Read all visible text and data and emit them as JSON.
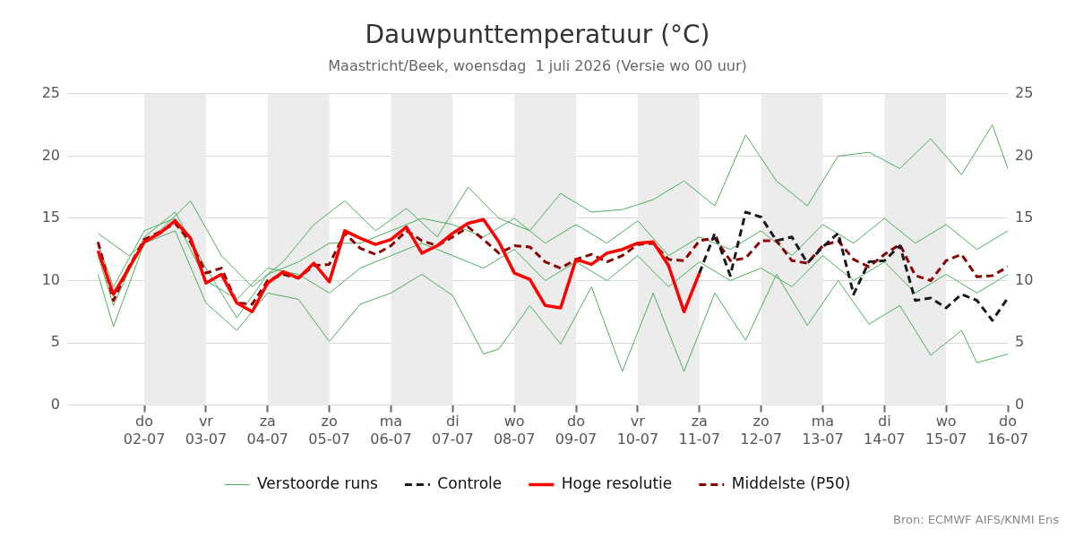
{
  "chart_data": {
    "type": "line",
    "title": "Dauwpunttemperatuur (°C)",
    "subtitle": "Maastricht/Beek, woensdag  1 juli 2026 (Versie wo 00 uur)",
    "annotations": [
      "Bron: ECMWF AIFS/KNMI Ens"
    ],
    "xlim": [
      "2026-06-30T18:00",
      "2026-07-16T00:00"
    ],
    "xticks": [
      {
        "value": "2026-07-02",
        "label": "do\n02-07"
      },
      {
        "value": "2026-07-03",
        "label": "vr\n03-07"
      },
      {
        "value": "2026-07-04",
        "label": "za\n04-07"
      },
      {
        "value": "2026-07-05",
        "label": "zo\n05-07"
      },
      {
        "value": "2026-07-06",
        "label": "ma\n06-07"
      },
      {
        "value": "2026-07-07",
        "label": "di\n07-07"
      },
      {
        "value": "2026-07-08",
        "label": "wo\n08-07"
      },
      {
        "value": "2026-07-09",
        "label": "do\n09-07"
      },
      {
        "value": "2026-07-10",
        "label": "vr\n10-07"
      },
      {
        "value": "2026-07-11",
        "label": "za\n11-07"
      },
      {
        "value": "2026-07-12",
        "label": "zo\n12-07"
      },
      {
        "value": "2026-07-13",
        "label": "ma\n13-07"
      },
      {
        "value": "2026-07-14",
        "label": "di\n14-07"
      },
      {
        "value": "2026-07-15",
        "label": "wo\n15-07"
      },
      {
        "value": "2026-07-16",
        "label": "do\n16-07"
      }
    ],
    "ylim": [
      0,
      25
    ],
    "yticks": [
      0,
      5,
      10,
      15,
      20,
      25
    ],
    "y2lim": [
      0,
      25
    ],
    "y2ticks": [
      0,
      5,
      10,
      15,
      20,
      25
    ],
    "grid": "y",
    "legend": "bottom",
    "marker": "none",
    "bands": [
      {
        "axis": "x",
        "from": "2026-07-02",
        "to": "2026-07-03",
        "color": "#ececec"
      },
      {
        "axis": "x",
        "from": "2026-07-04",
        "to": "2026-07-05",
        "color": "#ececec"
      },
      {
        "axis": "x",
        "from": "2026-07-06",
        "to": "2026-07-07",
        "color": "#ececec"
      },
      {
        "axis": "x",
        "from": "2026-07-08",
        "to": "2026-07-09",
        "color": "#ececec"
      },
      {
        "axis": "x",
        "from": "2026-07-10",
        "to": "2026-07-11",
        "color": "#ececec"
      },
      {
        "axis": "x",
        "from": "2026-07-12",
        "to": "2026-07-13",
        "color": "#ececec"
      },
      {
        "axis": "x",
        "from": "2026-07-14",
        "to": "2026-07-15",
        "color": "#ececec"
      }
    ],
    "series": [
      {
        "name": "Verstoorde runs",
        "color": "#4caf5a",
        "x": [
          "2026-07-01T06:00",
          "2026-07-01T18:00",
          "2026-07-02T06:00",
          "2026-07-02T18:00",
          "2026-07-03T06:00",
          "2026-07-03T18:00",
          "2026-07-04T06:00",
          "2026-07-04T18:00",
          "2026-07-05T06:00",
          "2026-07-05T18:00",
          "2026-07-06T06:00",
          "2026-07-06T18:00",
          "2026-07-07T06:00",
          "2026-07-07T18:00",
          "2026-07-08T06:00",
          "2026-07-08T18:00",
          "2026-07-09T06:00",
          "2026-07-09T18:00",
          "2026-07-10T06:00",
          "2026-07-10T18:00",
          "2026-07-11T06:00",
          "2026-07-11T18:00",
          "2026-07-12T06:00",
          "2026-07-12T18:00",
          "2026-07-13T06:00",
          "2026-07-13T18:00",
          "2026-07-14T06:00",
          "2026-07-14T18:00",
          "2026-07-15T06:00",
          "2026-07-15T18:00",
          "2026-07-16T00:00"
        ],
        "values": [
          13.8,
          12,
          14,
          16.4,
          12,
          9.5,
          11.5,
          14.5,
          16.4,
          14,
          15.8,
          13.5,
          17.5,
          15,
          14,
          17,
          15.5,
          15.7,
          16.5,
          18,
          16,
          21.7,
          18,
          16,
          20,
          20.3,
          19,
          21.4,
          18.5,
          22.5,
          19
        ]
      },
      {
        "color": "#4caf5a",
        "x": [
          "2026-07-01T06:00",
          "2026-07-01T12:00",
          "2026-07-02T00:00",
          "2026-07-02T12:00",
          "2026-07-03T00:00",
          "2026-07-03T12:00",
          "2026-07-04T00:00",
          "2026-07-04T12:00",
          "2026-07-05T00:00",
          "2026-07-05T12:00",
          "2026-07-06T00:00",
          "2026-07-06T12:00",
          "2026-07-07T00:00",
          "2026-07-07T12:00",
          "2026-07-07T18:00",
          "2026-07-08T06:00",
          "2026-07-08T18:00",
          "2026-07-09T06:00",
          "2026-07-09T18:00",
          "2026-07-10T06:00",
          "2026-07-10T18:00",
          "2026-07-11T06:00",
          "2026-07-11T18:00",
          "2026-07-12T06:00",
          "2026-07-12T18:00",
          "2026-07-13T06:00",
          "2026-07-13T18:00",
          "2026-07-14T06:00",
          "2026-07-14T18:00",
          "2026-07-15T06:00",
          "2026-07-15T12:00",
          "2026-07-16T00:00"
        ],
        "values": [
          10.5,
          6.3,
          13,
          14,
          8.2,
          6,
          9,
          8.5,
          5.1,
          8.1,
          9,
          10.5,
          8.8,
          4.1,
          4.5,
          8,
          4.9,
          9.5,
          2.7,
          9,
          2.7,
          9,
          5.2,
          10.5,
          6.4,
          10,
          6.5,
          8,
          4,
          6,
          3.4,
          4.1
        ]
      },
      {
        "color": "#4caf5a",
        "x": [
          "2026-07-01T06:00",
          "2026-07-01T12:00",
          "2026-07-02T00:00",
          "2026-07-02T12:00",
          "2026-07-03T00:00",
          "2026-07-03T12:00",
          "2026-07-04T00:00",
          "2026-07-04T12:00",
          "2026-07-05T00:00",
          "2026-07-05T12:00",
          "2026-07-06T00:00",
          "2026-07-06T12:00",
          "2026-07-07T00:00",
          "2026-07-07T12:00",
          "2026-07-08T00:00",
          "2026-07-08T12:00",
          "2026-07-09T00:00",
          "2026-07-09T12:00",
          "2026-07-10T00:00",
          "2026-07-10T12:00",
          "2026-07-11T00:00",
          "2026-07-11T12:00",
          "2026-07-12T00:00",
          "2026-07-12T12:00",
          "2026-07-13T00:00",
          "2026-07-13T12:00",
          "2026-07-14T00:00",
          "2026-07-14T12:00",
          "2026-07-15T00:00",
          "2026-07-15T12:00",
          "2026-07-16T00:00"
        ],
        "values": [
          12,
          8,
          13.5,
          15.5,
          11,
          7,
          10.5,
          11.5,
          13,
          13,
          14,
          15,
          14.5,
          13.5,
          15,
          13,
          14.5,
          13,
          14.8,
          12,
          13.5,
          12.5,
          14,
          12,
          14.5,
          13,
          15,
          13,
          14.5,
          12.5,
          14
        ]
      },
      {
        "color": "#4caf5a",
        "x": [
          "2026-07-01T06:00",
          "2026-07-01T12:00",
          "2026-07-02T00:00",
          "2026-07-02T12:00",
          "2026-07-03T00:00",
          "2026-07-03T12:00",
          "2026-07-04T00:00",
          "2026-07-04T12:00",
          "2026-07-05T00:00",
          "2026-07-05T12:00",
          "2026-07-06T00:00",
          "2026-07-06T12:00",
          "2026-07-07T00:00",
          "2026-07-07T12:00",
          "2026-07-08T00:00",
          "2026-07-08T12:00",
          "2026-07-09T00:00",
          "2026-07-09T12:00",
          "2026-07-10T00:00",
          "2026-07-10T12:00",
          "2026-07-11T00:00",
          "2026-07-11T12:00",
          "2026-07-12T00:00",
          "2026-07-12T12:00",
          "2026-07-13T00:00",
          "2026-07-13T12:00",
          "2026-07-14T00:00",
          "2026-07-14T12:00",
          "2026-07-15T00:00",
          "2026-07-15T12:00",
          "2026-07-16T00:00"
        ],
        "values": [
          13,
          9.5,
          14,
          15,
          10,
          8.5,
          11,
          10.5,
          9,
          11,
          12,
          13,
          12,
          11,
          12.5,
          10,
          11.5,
          10,
          12,
          9.5,
          11.5,
          10,
          11,
          9.5,
          12,
          10,
          11.5,
          9,
          10.5,
          9,
          10.5
        ]
      },
      {
        "name": "Controle",
        "color": "#1a1a1a",
        "line_style": "dashed",
        "x": [
          "2026-07-11T00:00",
          "2026-07-11T06:00",
          "2026-07-11T12:00",
          "2026-07-11T18:00",
          "2026-07-12T00:00",
          "2026-07-12T06:00",
          "2026-07-12T12:00",
          "2026-07-12T18:00",
          "2026-07-13T00:00",
          "2026-07-13T06:00",
          "2026-07-13T12:00",
          "2026-07-13T18:00",
          "2026-07-14T00:00",
          "2026-07-14T06:00",
          "2026-07-14T12:00",
          "2026-07-14T18:00",
          "2026-07-15T00:00",
          "2026-07-15T06:00",
          "2026-07-15T12:00",
          "2026-07-15T18:00",
          "2026-07-16T00:00"
        ],
        "values": [
          10.6,
          13.8,
          10.4,
          15.5,
          15.1,
          13.2,
          13.5,
          11.4,
          12.7,
          13.8,
          8.9,
          11.5,
          11.6,
          12.8,
          8.4,
          8.6,
          7.8,
          8.9,
          8.4,
          6.8,
          8.6
        ]
      },
      {
        "name": "Hoge resolutie",
        "color": "#ff0000",
        "x": [
          "2026-07-01T06:00",
          "2026-07-01T12:00",
          "2026-07-01T18:00",
          "2026-07-02T00:00",
          "2026-07-02T06:00",
          "2026-07-02T12:00",
          "2026-07-02T18:00",
          "2026-07-03T00:00",
          "2026-07-03T06:00",
          "2026-07-03T12:00",
          "2026-07-03T18:00",
          "2026-07-04T00:00",
          "2026-07-04T06:00",
          "2026-07-04T12:00",
          "2026-07-04T18:00",
          "2026-07-05T00:00",
          "2026-07-05T06:00",
          "2026-07-05T12:00",
          "2026-07-05T18:00",
          "2026-07-06T00:00",
          "2026-07-06T06:00",
          "2026-07-06T12:00",
          "2026-07-06T18:00",
          "2026-07-07T00:00",
          "2026-07-07T06:00",
          "2026-07-07T12:00",
          "2026-07-07T18:00",
          "2026-07-08T00:00",
          "2026-07-08T06:00",
          "2026-07-08T12:00",
          "2026-07-08T18:00",
          "2026-07-09T00:00",
          "2026-07-09T06:00",
          "2026-07-09T12:00",
          "2026-07-09T18:00",
          "2026-07-10T00:00",
          "2026-07-10T06:00",
          "2026-07-10T12:00",
          "2026-07-10T18:00",
          "2026-07-11T00:00"
        ],
        "values": [
          12.4,
          8.9,
          11,
          13.1,
          13.8,
          14.8,
          13.4,
          9.8,
          10.5,
          8.2,
          7.5,
          9.8,
          10.7,
          10.2,
          11.4,
          9.9,
          14,
          13.4,
          12.9,
          13.3,
          14.3,
          12.2,
          12.8,
          13.8,
          14.6,
          14.9,
          13.1,
          10.6,
          10.1,
          8,
          7.8,
          11.7,
          11.3,
          12.2,
          12.5,
          13,
          13.1,
          11.2,
          7.5,
          10.6
        ]
      },
      {
        "name": "Middelste (P50)",
        "color": "#8b0000",
        "line_style": "dashed",
        "x": [
          "2026-07-01T06:00",
          "2026-07-01T12:00",
          "2026-07-01T18:00",
          "2026-07-02T00:00",
          "2026-07-02T06:00",
          "2026-07-02T12:00",
          "2026-07-02T18:00",
          "2026-07-03T00:00",
          "2026-07-03T06:00",
          "2026-07-03T12:00",
          "2026-07-03T18:00",
          "2026-07-04T00:00",
          "2026-07-04T06:00",
          "2026-07-04T12:00",
          "2026-07-04T18:00",
          "2026-07-05T00:00",
          "2026-07-05T06:00",
          "2026-07-05T12:00",
          "2026-07-05T18:00",
          "2026-07-06T00:00",
          "2026-07-06T06:00",
          "2026-07-06T12:00",
          "2026-07-06T18:00",
          "2026-07-07T00:00",
          "2026-07-07T06:00",
          "2026-07-07T12:00",
          "2026-07-07T18:00",
          "2026-07-08T00:00",
          "2026-07-08T06:00",
          "2026-07-08T12:00",
          "2026-07-08T18:00",
          "2026-07-09T00:00",
          "2026-07-09T06:00",
          "2026-07-09T12:00",
          "2026-07-09T18:00",
          "2026-07-10T00:00",
          "2026-07-10T06:00",
          "2026-07-10T12:00",
          "2026-07-10T18:00",
          "2026-07-11T00:00",
          "2026-07-11T06:00",
          "2026-07-11T12:00",
          "2026-07-11T18:00",
          "2026-07-12T00:00",
          "2026-07-12T06:00",
          "2026-07-12T12:00",
          "2026-07-12T18:00",
          "2026-07-13T00:00",
          "2026-07-13T06:00",
          "2026-07-13T12:00",
          "2026-07-13T18:00",
          "2026-07-14T00:00",
          "2026-07-14T06:00",
          "2026-07-14T12:00",
          "2026-07-14T18:00",
          "2026-07-15T00:00",
          "2026-07-15T06:00",
          "2026-07-15T12:00",
          "2026-07-15T18:00",
          "2026-07-16T00:00"
        ],
        "values": [
          13.1,
          8.4,
          11.1,
          13.3,
          13.9,
          14.6,
          13.1,
          10.6,
          11,
          8.2,
          8.1,
          10,
          10.5,
          10.2,
          11.2,
          11.3,
          13.8,
          12.6,
          12.1,
          12.8,
          14,
          13.2,
          12.8,
          13.5,
          14.3,
          13.3,
          12.2,
          12.8,
          12.7,
          11.5,
          11,
          11.7,
          12.1,
          11.5,
          12,
          12.9,
          13,
          11.7,
          11.6,
          13.2,
          13.4,
          11.6,
          11.8,
          13.2,
          13.2,
          11.6,
          11.4,
          12.8,
          13.2,
          11.7,
          11.1,
          12.1,
          12.9,
          10.4,
          10,
          11.6,
          12.1,
          10.3,
          10.4,
          11.1
        ]
      }
    ]
  }
}
